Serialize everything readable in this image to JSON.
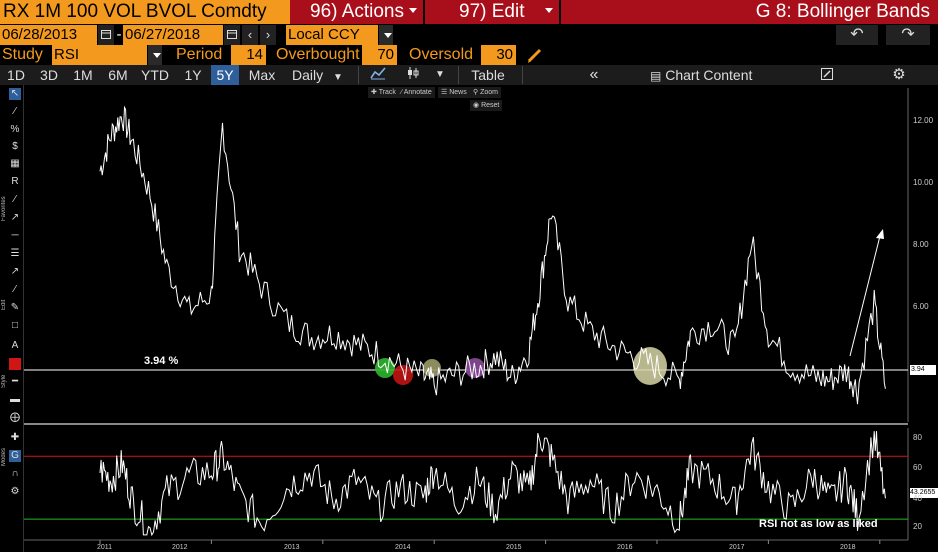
{
  "header": {
    "ticker": "RX 1M 100 VOL BVOL Comdty",
    "actions": "96) Actions",
    "edit": "97) Edit",
    "page_title": "G 8: Bollinger Bands"
  },
  "dates": {
    "start": "06/28/2013",
    "separator": "-",
    "end": "06/27/2018",
    "currency": "Local CCY"
  },
  "study": {
    "label": "Study",
    "value": "RSI",
    "period_label": "Period",
    "period_value": "14",
    "overbought_label": "Overbought",
    "overbought_value": "70",
    "oversold_label": "Oversold",
    "oversold_value": "30"
  },
  "toolbar": {
    "ranges": [
      "1D",
      "3D",
      "1M",
      "6M",
      "YTD",
      "1Y",
      "5Y",
      "Max"
    ],
    "active_range": "5Y",
    "frequency": "Daily",
    "table": "Table",
    "chart_content": "Chart Content"
  },
  "mini_toolbar": {
    "track": "Track",
    "annotate": "Annotate",
    "news": "News",
    "zoom": "Zoom",
    "reset": "Reset"
  },
  "side_labels": {
    "favorites": "Favorites",
    "edit": "Edit",
    "style": "Style",
    "modes": "Modes"
  },
  "annotations": {
    "level_label": "3.94 %",
    "rsi_note": "RSI not as low as liked"
  },
  "colors": {
    "bloomberg_orange": "#f39a1e",
    "header_red": "#a80f1a",
    "active_blue": "#2e5f9a",
    "overbought_line": "#d01515",
    "oversold_line": "#22bb22",
    "circle_green": "#2fb52f",
    "circle_red": "#c01414",
    "circle_olive": "#9a9a6a",
    "circle_purple": "#8a4c9a",
    "circle_beige": "#d8d6a6"
  },
  "chart_data": [
    {
      "type": "line",
      "series": [],
      "x_ticks": [
        "2011",
        "2012",
        "2013",
        "2014",
        "2015",
        "2016",
        "2017",
        "2018"
      ],
      "y_ticks": [
        "12.00",
        "10.00",
        "8.00",
        "6.00"
      ],
      "last_value": "3.94",
      "ylim": [
        3,
        13
      ],
      "x": [
        2011.0,
        2011.1,
        2011.2,
        2011.3,
        2011.45,
        2011.6,
        2011.8,
        2012.0,
        2012.1,
        2012.25,
        2012.45,
        2012.7,
        2012.9,
        2013.1,
        2013.3,
        2013.5,
        2013.7,
        2013.9,
        2014.0,
        2014.2,
        2014.4,
        2014.55,
        2014.7,
        2014.85,
        2014.95,
        2015.05,
        2015.2,
        2015.4,
        2015.6,
        2015.8,
        2016.0,
        2016.2,
        2016.3,
        2016.5,
        2016.7,
        2016.85,
        2017.0,
        2017.2,
        2017.4,
        2017.55,
        2017.7,
        2017.8,
        2017.95,
        2018.05
      ],
      "values": [
        10.5,
        11.6,
        12.2,
        11.3,
        9.8,
        7.6,
        6.3,
        6.8,
        11.9,
        8.2,
        7.0,
        5.9,
        5.5,
        5.6,
        5.3,
        5.0,
        4.6,
        4.3,
        4.1,
        4.4,
        4.6,
        4.9,
        4.3,
        5.1,
        7.0,
        9.3,
        6.6,
        5.7,
        5.2,
        4.9,
        4.6,
        4.2,
        5.6,
        5.9,
        5.2,
        8.4,
        5.6,
        4.6,
        4.3,
        4.2,
        4.5,
        3.9,
        6.5,
        3.94
      ]
    },
    {
      "type": "line",
      "series": [],
      "y_ticks": [
        "80",
        "60",
        "40",
        "20"
      ],
      "last_value": "43.2655",
      "ylim": [
        18,
        88
      ],
      "overbought": 70,
      "oversold": 30,
      "x": [
        2011.0,
        2011.1,
        2011.2,
        2011.3,
        2011.45,
        2011.6,
        2011.8,
        2012.0,
        2012.1,
        2012.25,
        2012.45,
        2012.7,
        2012.9,
        2013.1,
        2013.3,
        2013.5,
        2013.7,
        2013.9,
        2014.0,
        2014.2,
        2014.4,
        2014.55,
        2014.7,
        2014.85,
        2014.95,
        2015.05,
        2015.2,
        2015.4,
        2015.6,
        2015.8,
        2016.0,
        2016.2,
        2016.3,
        2016.5,
        2016.7,
        2016.85,
        2017.0,
        2017.2,
        2017.4,
        2017.55,
        2017.7,
        2017.8,
        2017.95,
        2018.05
      ],
      "values": [
        62,
        55,
        65,
        40,
        22,
        48,
        58,
        60,
        70,
        45,
        28,
        52,
        60,
        42,
        55,
        38,
        50,
        44,
        62,
        40,
        55,
        35,
        60,
        48,
        84,
        70,
        42,
        55,
        36,
        58,
        48,
        28,
        62,
        55,
        40,
        75,
        50,
        36,
        58,
        42,
        55,
        32,
        84,
        43.27
      ]
    }
  ]
}
